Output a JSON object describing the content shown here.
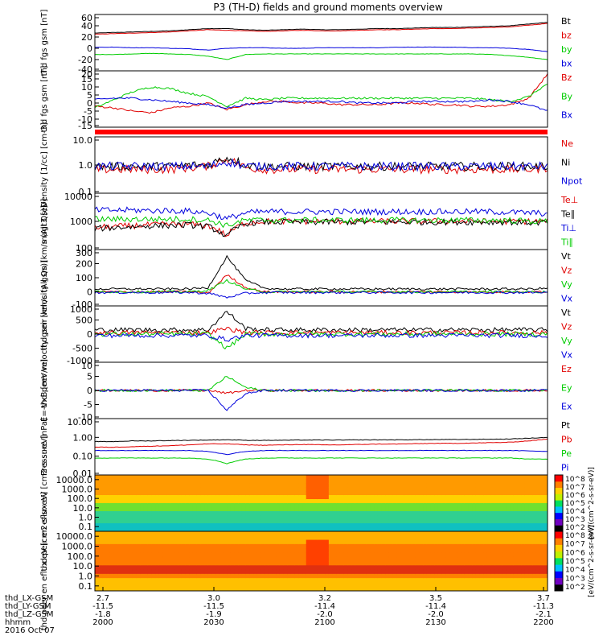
{
  "title": "P3 (TH-D) fields and ground moments overview",
  "colors": {
    "black": "#000000",
    "red": "#e00000",
    "green": "#00cc00",
    "blue": "#0000dd"
  },
  "chart_data": [
    {
      "type": "line",
      "ylabel": "thd fgs gsm [nT]",
      "ylim": [
        -40,
        60
      ],
      "yticks": [
        "60",
        "40",
        "20",
        "0",
        "-20",
        "-40"
      ],
      "yticks_val": [
        60,
        40,
        20,
        0,
        -20,
        -40
      ],
      "series": [
        {
          "name": "Bt",
          "color": "black",
          "values": [
            27,
            28,
            29,
            30,
            31,
            33,
            35,
            35,
            33,
            32,
            33,
            34,
            33,
            33,
            34,
            35,
            35,
            36,
            37,
            37,
            38,
            39,
            40,
            43,
            46
          ]
        },
        {
          "name": "bz",
          "color": "red",
          "values": [
            25,
            26,
            27,
            28,
            29,
            31,
            33,
            32,
            31,
            30,
            31,
            32,
            31,
            31,
            32,
            33,
            33,
            34,
            35,
            35,
            36,
            37,
            38,
            41,
            44
          ]
        },
        {
          "name": "by",
          "color": "green",
          "values": [
            -11,
            -11,
            -10,
            -9,
            -10,
            -11,
            -14,
            -20,
            -11,
            -10,
            -10,
            -10,
            -10,
            -10,
            -10,
            -10,
            -10,
            -10,
            -10,
            -10,
            -10,
            -11,
            -13,
            -16,
            -20
          ]
        },
        {
          "name": "bx",
          "color": "blue",
          "values": [
            2,
            2,
            1,
            1,
            0,
            -1,
            -3,
            0,
            1,
            1,
            0,
            0,
            1,
            1,
            1,
            1,
            2,
            2,
            2,
            2,
            1,
            1,
            0,
            -2,
            -6
          ]
        }
      ]
    },
    {
      "type": "line",
      "ylabel": "thd fgs gsm [nT]",
      "ylim": [
        -15,
        20
      ],
      "yticks": [
        "20",
        "15",
        "10",
        "5",
        "0",
        "-5",
        "-10",
        "-15"
      ],
      "yticks_val": [
        20,
        15,
        10,
        5,
        0,
        -5,
        -10,
        -15
      ],
      "series": [
        {
          "name": "Bz",
          "color": "red",
          "values": [
            -2,
            -3,
            -5,
            -6,
            -3,
            -2,
            0,
            -4,
            -1,
            1,
            1,
            0,
            0,
            -1,
            -1,
            -1,
            0,
            0,
            -1,
            -1,
            -2,
            -2,
            -1,
            3,
            18
          ]
        },
        {
          "name": "By",
          "color": "green",
          "values": [
            -3,
            2,
            7,
            10,
            9,
            6,
            4,
            -2,
            3,
            2,
            3,
            3,
            3,
            3,
            3,
            3,
            3,
            3,
            3,
            3,
            3,
            2,
            1,
            4,
            12
          ]
        },
        {
          "name": "Bx",
          "color": "blue",
          "values": [
            2,
            3,
            3,
            2,
            1,
            0,
            -1,
            -3,
            -1,
            0,
            1,
            1,
            1,
            1,
            0,
            0,
            0,
            1,
            1,
            1,
            1,
            2,
            1,
            -1,
            -5
          ]
        }
      ]
    },
    {
      "type": "line",
      "ylabel": "Density [1/cc] [cm-3]",
      "yscale": "log",
      "ylim": [
        0.1,
        10
      ],
      "yticks": [
        "10.0",
        "1.0",
        "0.1"
      ],
      "yticks_val": [
        10,
        1,
        0.1
      ],
      "series": [
        {
          "name": "Ne",
          "color": "red",
          "values": [
            0.7,
            0.7,
            0.7,
            0.7,
            0.7,
            0.8,
            0.9,
            1.6,
            0.8,
            0.7,
            0.7,
            0.7,
            0.7,
            0.7,
            0.7,
            0.7,
            0.7,
            0.7,
            0.7,
            0.7,
            0.7,
            0.7,
            0.7,
            0.7,
            0.8
          ]
        },
        {
          "name": "Ni",
          "color": "black",
          "values": [
            0.9,
            0.9,
            0.9,
            0.9,
            0.9,
            1.0,
            1.0,
            1.8,
            1.0,
            0.9,
            0.9,
            0.9,
            0.9,
            0.9,
            0.9,
            0.9,
            0.9,
            0.9,
            0.9,
            0.9,
            0.9,
            0.9,
            0.9,
            0.9,
            0.9
          ]
        },
        {
          "name": "Npot",
          "color": "blue",
          "values": [
            0.9,
            0.9,
            0.9,
            0.9,
            0.9,
            0.9,
            0.9,
            1.3,
            0.9,
            0.9,
            0.9,
            0.9,
            0.9,
            0.9,
            0.9,
            0.9,
            0.9,
            0.9,
            0.9,
            0.9,
            0.9,
            0.9,
            0.9,
            0.9,
            0.9
          ]
        }
      ]
    },
    {
      "type": "line",
      "ylabel": "magt3 [eV]",
      "yscale": "log",
      "ylim": [
        100,
        10000
      ],
      "yticks": [
        "10000",
        "1000",
        "100"
      ],
      "yticks_val": [
        10000,
        1000,
        100
      ],
      "series": [
        {
          "name": "Te⊥",
          "color": "red",
          "values": [
            600,
            650,
            700,
            750,
            780,
            800,
            700,
            300,
            900,
            1000,
            1000,
            1000,
            1000,
            1000,
            1000,
            1000,
            1000,
            1000,
            1000,
            1000,
            1000,
            1000,
            1000,
            1000,
            1000
          ]
        },
        {
          "name": "Te∥",
          "color": "black",
          "values": [
            550,
            600,
            650,
            700,
            720,
            740,
            650,
            280,
            850,
            950,
            950,
            950,
            950,
            950,
            950,
            950,
            950,
            950,
            950,
            950,
            950,
            950,
            950,
            900,
            900
          ]
        },
        {
          "name": "Ti⊥",
          "color": "blue",
          "values": [
            2500,
            2500,
            2500,
            2400,
            2400,
            2300,
            2000,
            1200,
            2000,
            2200,
            2200,
            2200,
            2200,
            2200,
            2200,
            2200,
            2200,
            2200,
            2200,
            2200,
            2200,
            2200,
            2100,
            2000,
            1900
          ]
        },
        {
          "name": "Ti∥",
          "color": "green",
          "values": [
            1200,
            1200,
            1200,
            1200,
            1200,
            1200,
            1100,
            700,
            1100,
            1100,
            1100,
            1100,
            1100,
            1100,
            1100,
            1100,
            1100,
            1100,
            1100,
            1100,
            1100,
            1100,
            1100,
            1000,
            1000
          ]
        }
      ]
    },
    {
      "type": "line",
      "ylabel": "thd peir velocity gsm [km/s (All Qs)]",
      "ylim": [
        -100,
        300
      ],
      "yticks": [
        "300",
        "200",
        "100",
        "0",
        "-100"
      ],
      "yticks_val": [
        300,
        200,
        100,
        0,
        -100
      ],
      "series": [
        {
          "name": "Vt",
          "color": "black",
          "values": [
            20,
            20,
            20,
            20,
            20,
            20,
            30,
            250,
            80,
            25,
            20,
            20,
            20,
            20,
            20,
            20,
            20,
            20,
            20,
            20,
            20,
            20,
            20,
            20,
            25
          ]
        },
        {
          "name": "Vz",
          "color": "red",
          "values": [
            0,
            0,
            0,
            0,
            0,
            0,
            -10,
            120,
            30,
            0,
            0,
            0,
            0,
            0,
            0,
            0,
            0,
            0,
            0,
            0,
            0,
            0,
            0,
            0,
            0
          ]
        },
        {
          "name": "Vy",
          "color": "green",
          "values": [
            0,
            0,
            0,
            0,
            0,
            0,
            10,
            80,
            20,
            0,
            0,
            0,
            0,
            0,
            0,
            0,
            0,
            0,
            0,
            0,
            0,
            0,
            0,
            0,
            0
          ]
        },
        {
          "name": "Vx",
          "color": "blue",
          "values": [
            -5,
            -5,
            -5,
            -5,
            -5,
            -5,
            -10,
            -40,
            -10,
            -5,
            -5,
            -5,
            -5,
            -5,
            -5,
            -5,
            -5,
            -5,
            -5,
            -5,
            -5,
            -5,
            -5,
            -5,
            -5
          ]
        }
      ]
    },
    {
      "type": "line",
      "ylabel": "thd peer velocity gsm [km/s (All Qs)]",
      "ylim": [
        -1000,
        1000
      ],
      "yticks": [
        "1000",
        "500",
        "0",
        "-500",
        "-1000"
      ],
      "yticks_val": [
        1000,
        500,
        0,
        -500,
        -1000
      ],
      "series": [
        {
          "name": "Vt",
          "color": "black",
          "values": [
            150,
            150,
            150,
            150,
            150,
            150,
            150,
            800,
            200,
            150,
            150,
            150,
            150,
            150,
            150,
            150,
            150,
            150,
            150,
            150,
            150,
            150,
            150,
            150,
            150
          ]
        },
        {
          "name": "Vz",
          "color": "red",
          "values": [
            50,
            50,
            50,
            50,
            50,
            50,
            50,
            200,
            50,
            50,
            50,
            50,
            50,
            50,
            50,
            50,
            50,
            50,
            50,
            50,
            50,
            50,
            50,
            50,
            50
          ]
        },
        {
          "name": "Vy",
          "color": "green",
          "values": [
            0,
            0,
            0,
            0,
            0,
            0,
            0,
            -500,
            0,
            0,
            0,
            0,
            0,
            0,
            0,
            0,
            0,
            0,
            0,
            0,
            0,
            0,
            0,
            0,
            0
          ]
        },
        {
          "name": "Vx",
          "color": "blue",
          "values": [
            -50,
            -50,
            -50,
            -50,
            -50,
            -50,
            -50,
            -200,
            -50,
            -50,
            -50,
            -50,
            -50,
            -50,
            -50,
            -50,
            -50,
            -50,
            -50,
            -50,
            -50,
            -50,
            -50,
            -50,
            -50
          ]
        }
      ]
    },
    {
      "type": "line",
      "ylabel": "E=-VxB [mV/m]",
      "ylim": [
        -10,
        10
      ],
      "yticks": [
        "10",
        "5",
        "0",
        "-5",
        "-10"
      ],
      "yticks_val": [
        10,
        5,
        0,
        -5,
        -10
      ],
      "series": [
        {
          "name": "Ez",
          "color": "red",
          "values": [
            0,
            0,
            0,
            0,
            0,
            0,
            0,
            -1,
            0,
            0,
            0,
            0,
            0,
            0,
            0,
            0,
            0,
            0,
            0,
            0,
            0,
            0,
            0,
            0,
            0
          ]
        },
        {
          "name": "Ey",
          "color": "green",
          "values": [
            0,
            0,
            0,
            0,
            0,
            0,
            0,
            5,
            1,
            0,
            0,
            0,
            0,
            0,
            0,
            0,
            0,
            0,
            0,
            0,
            0,
            0,
            0,
            0,
            0
          ]
        },
        {
          "name": "Ex",
          "color": "blue",
          "values": [
            0,
            0,
            0,
            0,
            0,
            0,
            0,
            -7,
            -1,
            0,
            0,
            0,
            0,
            0,
            0,
            0,
            0,
            0,
            0,
            0,
            0,
            0,
            0,
            0,
            0
          ]
        }
      ]
    },
    {
      "type": "line",
      "ylabel": "Pressure [nPa]",
      "yscale": "log",
      "ylim": [
        0.01,
        10
      ],
      "yticks": [
        "10.00",
        "1.00",
        "0.10",
        "0.01"
      ],
      "yticks_val": [
        10,
        1,
        0.1,
        0.01
      ],
      "series": [
        {
          "name": "Pt",
          "color": "black",
          "values": [
            0.6,
            0.6,
            0.65,
            0.65,
            0.68,
            0.7,
            0.72,
            0.75,
            0.7,
            0.7,
            0.7,
            0.72,
            0.72,
            0.72,
            0.73,
            0.74,
            0.74,
            0.75,
            0.76,
            0.77,
            0.78,
            0.8,
            0.82,
            0.9,
            1.0
          ]
        },
        {
          "name": "Pb",
          "color": "red",
          "values": [
            0.3,
            0.3,
            0.32,
            0.34,
            0.36,
            0.4,
            0.45,
            0.45,
            0.4,
            0.38,
            0.4,
            0.42,
            0.4,
            0.4,
            0.42,
            0.44,
            0.44,
            0.46,
            0.48,
            0.48,
            0.5,
            0.52,
            0.55,
            0.65,
            0.8
          ]
        },
        {
          "name": "Pe",
          "color": "green",
          "values": [
            0.08,
            0.08,
            0.08,
            0.08,
            0.08,
            0.08,
            0.07,
            0.04,
            0.07,
            0.08,
            0.08,
            0.08,
            0.08,
            0.08,
            0.08,
            0.08,
            0.08,
            0.08,
            0.08,
            0.08,
            0.08,
            0.08,
            0.08,
            0.07,
            0.07
          ]
        },
        {
          "name": "Pi",
          "color": "blue",
          "values": [
            0.2,
            0.2,
            0.2,
            0.2,
            0.2,
            0.2,
            0.18,
            0.12,
            0.18,
            0.2,
            0.2,
            0.2,
            0.2,
            0.2,
            0.2,
            0.2,
            0.2,
            0.2,
            0.2,
            0.2,
            0.2,
            0.2,
            0.2,
            0.19,
            0.18
          ]
        }
      ]
    },
    {
      "type": "heatmap",
      "ylabel": "thd peir en eflux eV [cm2-s-sr-eV]",
      "yticks": [
        "10000.0",
        "1000.0",
        "100.0",
        "10.0",
        "1.0",
        "0.1"
      ],
      "zscale": "log",
      "zrange": [
        100,
        100000000
      ]
    },
    {
      "type": "heatmap",
      "ylabel": "thd peer en eflux eV [cm2-s-sr-eV]",
      "yticks": [
        "10000.0",
        "1000.0",
        "100.0",
        "10.0",
        "1.0",
        "0.1"
      ],
      "zscale": "log",
      "zrange": [
        100,
        100000000
      ]
    }
  ],
  "colorbar": {
    "label": "[eV/(cm^2-s-sr-eV)]",
    "ticks": [
      "10^8",
      "10^7",
      "10^6",
      "10^5",
      "10^4",
      "10^3",
      "10^2"
    ]
  },
  "colorbar2": {
    "label": "[eV/(cm^2-s-sr-eV)]",
    "ticks": [
      "10^8",
      "10^7",
      "10^6",
      "10^5",
      "10^4",
      "10^3",
      "10^2"
    ]
  },
  "xaxis": {
    "rows": [
      {
        "label": "thd_LX-GSM",
        "values": [
          "2.7",
          "3.0",
          "3.2",
          "3.5",
          "3.7"
        ]
      },
      {
        "label": "thd_LY-GSM",
        "values": [
          "-11.5",
          "-11.5",
          "-11.4",
          "-11.4",
          "-11.3"
        ]
      },
      {
        "label": "thd_LZ-GSM",
        "values": [
          "-1.8",
          "-1.9",
          "-2.0",
          "-2.0",
          "-2.1"
        ]
      },
      {
        "label": "hhmm",
        "values": [
          "2000",
          "2030",
          "2100",
          "2130",
          "2200"
        ]
      }
    ],
    "date": "2016 Oct 07"
  }
}
